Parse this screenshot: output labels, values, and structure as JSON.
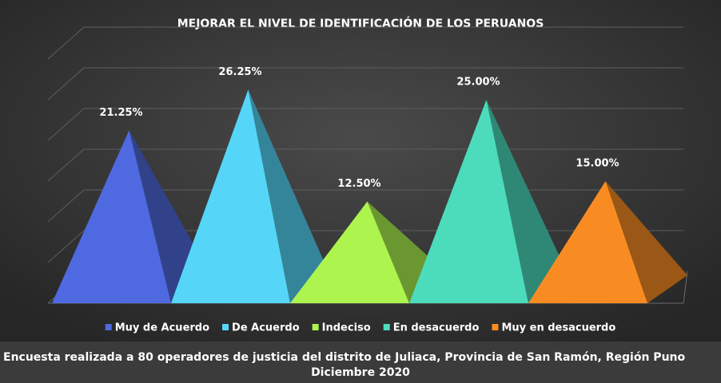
{
  "chart_data": {
    "type": "pyramid",
    "title": "MEJORAR EL NIVEL DE IDENTIFICACIÓN DE LOS PERUANOS",
    "categories": [
      "Muy de Acuerdo",
      "De Acuerdo",
      "Indeciso",
      "En desacuerdo",
      "Muy en desacuerdo"
    ],
    "values": [
      21.25,
      26.25,
      12.5,
      25,
      15
    ],
    "value_labels": [
      "21.25%",
      "26.25%",
      "12.50%",
      "25.00%",
      "15.00%"
    ],
    "colors": [
      "#4f6ae0",
      "#55d6f8",
      "#adf44e",
      "#4cdcbc",
      "#f88c22"
    ],
    "ylim": [
      0,
      30
    ],
    "yticks": [
      0,
      5,
      10,
      15,
      20,
      25,
      30
    ],
    "grid": true,
    "legend": "bottom",
    "footnote": [
      "Encuesta realizada a 80 operadores de justicia del distrito de Juliaca, Provincia de San Ramón, Región Puno",
      "Diciembre 2020"
    ]
  }
}
